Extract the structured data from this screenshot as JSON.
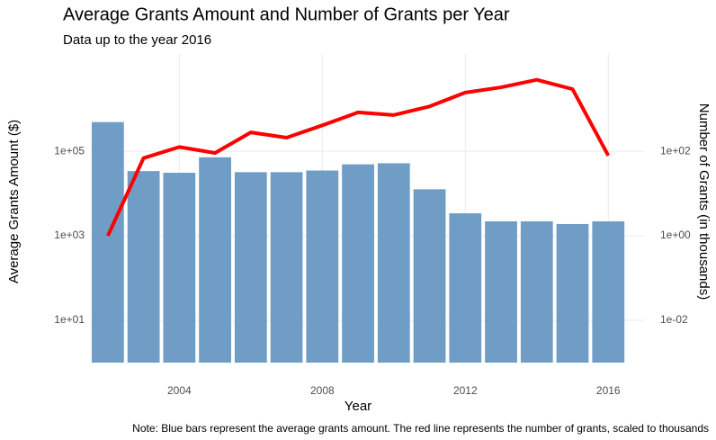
{
  "chart_data": {
    "type": "bar-line",
    "title": "Average Grants Amount and Number of Grants per Year",
    "subtitle": "Data up to the year 2016",
    "x_label": "Year",
    "y_label": "Average Grants Amount ($)",
    "y2_label": "Number of Grants (in thousands)",
    "caption": "Note: Blue bars represent the average grants amount. The red line represents the number of grants, scaled to thousands",
    "x": [
      2002,
      2003,
      2004,
      2005,
      2006,
      2007,
      2008,
      2009,
      2010,
      2011,
      2012,
      2013,
      2014,
      2015,
      2016
    ],
    "series": [
      {
        "type": "bar",
        "color": "#6f9dc6",
        "values": [
          490000,
          34000,
          31000,
          72000,
          32000,
          32000,
          35000,
          49000,
          52000,
          12600,
          3400,
          2200,
          2200,
          1900,
          2200
        ]
      },
      {
        "type": "line",
        "axis": "y2",
        "color": "#ff0000",
        "values": [
          1,
          69,
          126,
          91,
          280,
          210,
          410,
          830,
          720,
          1150,
          2450,
          3250,
          4900,
          2950,
          79
        ]
      }
    ],
    "xlim": [
      2001.5,
      2017
    ],
    "xticks": [
      2004,
      2008,
      2012,
      2016
    ],
    "ylim": [
      1,
      20000000
    ],
    "log_y": true,
    "yticks": [
      {
        "value": 10,
        "label": "1e+01"
      },
      {
        "value": 1000,
        "label": "1e+03"
      },
      {
        "value": 100000,
        "label": "1e+05"
      }
    ],
    "y2lim": [
      0.001,
      20000
    ],
    "y2ticks": [
      {
        "value": 0.01,
        "label": "1e-02"
      },
      {
        "value": 1,
        "label": "1e+00"
      },
      {
        "value": 100,
        "label": "1e+02"
      }
    ],
    "grid": true
  }
}
